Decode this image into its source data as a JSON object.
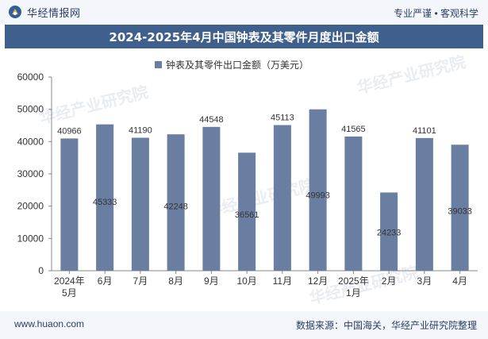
{
  "header": {
    "brand_name": "华经情报网",
    "tagline": "专业严谨 • 客观科学",
    "title": "2024-2025年4月中国钟表及其零件月度出口金额"
  },
  "footer": {
    "url": "www.huaon.com",
    "source": "数据来源：中国海关，华经产业研究院整理"
  },
  "watermark": "华经产业研究院",
  "colors": {
    "bar": "#6a7ea2",
    "title_bg": "#3f5f8c",
    "text": "#2b3f63"
  },
  "chart_data": {
    "type": "bar",
    "categories": [
      "2024年5月",
      "6月",
      "7月",
      "8月",
      "9月",
      "10月",
      "11月",
      "12月",
      "2025年1月",
      "2月",
      "3月",
      "4月"
    ],
    "series": [
      {
        "name": "钟表及其零件出口金额（万美元）",
        "values": [
          40966,
          45333,
          41190,
          42248,
          44548,
          36561,
          45113,
          49993,
          41565,
          24233,
          41101,
          39033
        ]
      }
    ],
    "title": "2024-2025年4月中国钟表及其零件月度出口金额",
    "ylim": [
      0,
      60000
    ],
    "yticks": [
      0,
      10000,
      20000,
      30000,
      40000,
      50000,
      60000
    ],
    "legend": "top-center",
    "grid": false
  }
}
